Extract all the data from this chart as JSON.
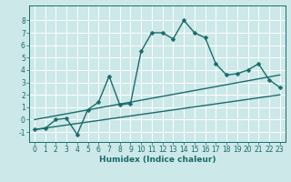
{
  "xlabel": "Humidex (Indice chaleur)",
  "background_color": "#cce8e8",
  "grid_color": "#aacccc",
  "line_color": "#1a6b6b",
  "xlim": [
    -0.5,
    23.5
  ],
  "ylim": [
    -1.8,
    9.2
  ],
  "yticks": [
    -1,
    0,
    1,
    2,
    3,
    4,
    5,
    6,
    7,
    8
  ],
  "xticks": [
    0,
    1,
    2,
    3,
    4,
    5,
    6,
    7,
    8,
    9,
    10,
    11,
    12,
    13,
    14,
    15,
    16,
    17,
    18,
    19,
    20,
    21,
    22,
    23
  ],
  "main_x": [
    0,
    1,
    2,
    3,
    4,
    5,
    6,
    7,
    8,
    9,
    10,
    11,
    12,
    13,
    14,
    15,
    16,
    17,
    18,
    19,
    20,
    21,
    22,
    23
  ],
  "main_y": [
    -0.8,
    -0.7,
    0.0,
    0.1,
    -1.2,
    0.8,
    1.4,
    3.5,
    1.2,
    1.3,
    5.5,
    7.0,
    7.0,
    6.5,
    8.0,
    7.0,
    6.6,
    4.5,
    3.6,
    3.7,
    4.0,
    4.5,
    3.2,
    2.6
  ],
  "upper_trend_x": [
    0,
    23
  ],
  "upper_trend_y": [
    0.0,
    3.6
  ],
  "lower_trend_x": [
    0,
    23
  ],
  "lower_trend_y": [
    -0.8,
    2.0
  ],
  "tick_fontsize": 5.5,
  "xlabel_fontsize": 6.5,
  "marker_size": 2.5,
  "linewidth": 1.0
}
